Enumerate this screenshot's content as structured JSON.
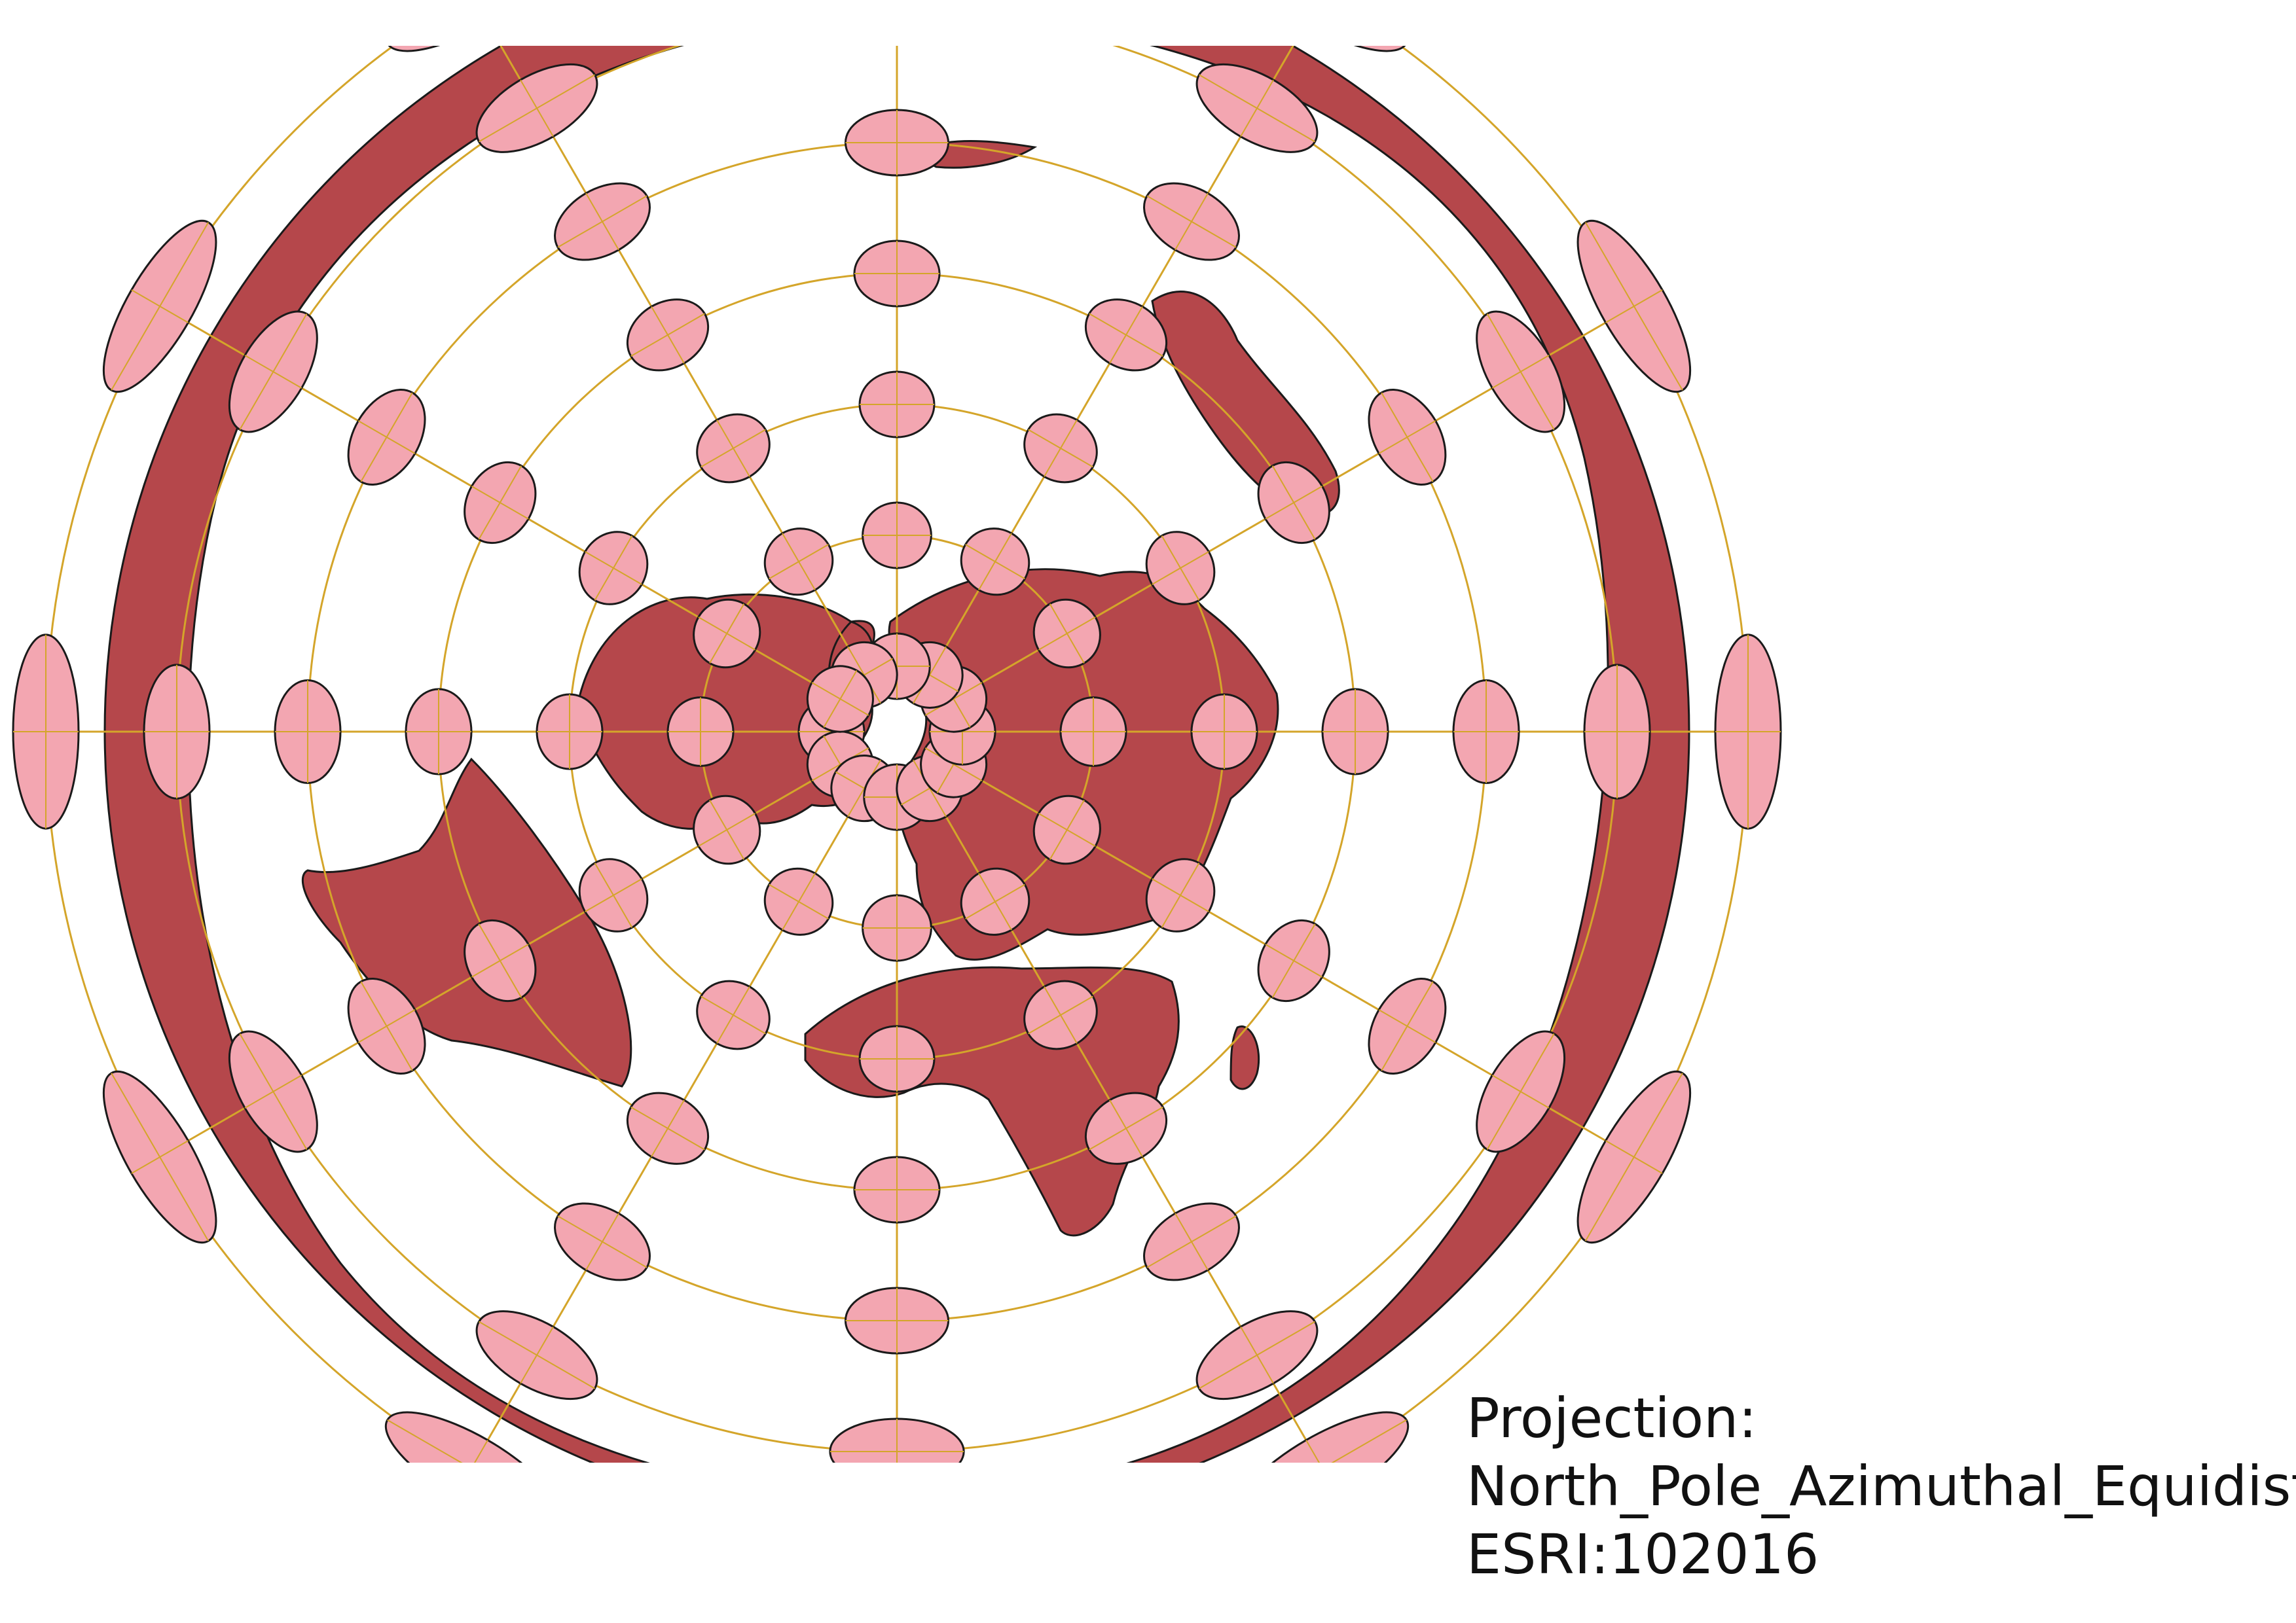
{
  "map": {
    "projection_label": "Projection:",
    "projection_name": "North_Pole_Azimuthal_Equidistant",
    "projection_code": "ESRI:102016",
    "colors": {
      "land": "#b5474b",
      "outline": "#1a1a1a",
      "indicatrix_fill": "#f3a6b1",
      "graticule": "#d4a52a",
      "ocean": "#ffffff"
    },
    "graticule": {
      "parallels_deg": [
        80,
        60,
        40,
        20,
        0,
        -20,
        -40
      ],
      "meridian_step_deg": 30
    },
    "tissot_indicatrix": {
      "circle_radius_deg": 5,
      "latitudes_deg": [
        80,
        60,
        40,
        20,
        0,
        -20,
        -40
      ],
      "longitudes_deg": [
        0,
        30,
        60,
        90,
        120,
        150,
        180,
        210,
        240,
        270,
        300,
        330
      ]
    }
  }
}
